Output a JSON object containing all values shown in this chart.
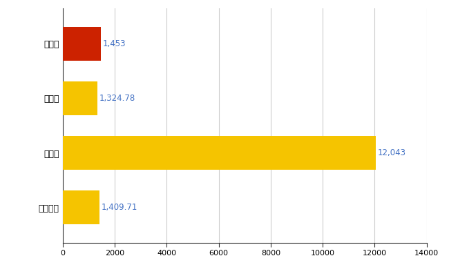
{
  "categories": [
    "鴻巣市",
    "県平均",
    "県最大",
    "全国平均"
  ],
  "values": [
    1453,
    1324.78,
    12043,
    1409.71
  ],
  "labels": [
    "1,453",
    "1,324.78",
    "12,043",
    "1,409.71"
  ],
  "bar_colors": [
    "#cc2200",
    "#f5c400",
    "#f5c400",
    "#f5c400"
  ],
  "xlim": [
    0,
    14000
  ],
  "xticks": [
    0,
    2000,
    4000,
    6000,
    8000,
    10000,
    12000,
    14000
  ],
  "xtick_labels": [
    "0",
    "2000",
    "4000",
    "6000",
    "8000",
    "10000",
    "12000",
    "14000"
  ],
  "label_color": "#4472c4",
  "grid_color": "#cccccc",
  "background_color": "#ffffff",
  "label_fontsize": 8.5,
  "tick_fontsize": 8,
  "category_fontsize": 9,
  "bar_height": 0.62
}
